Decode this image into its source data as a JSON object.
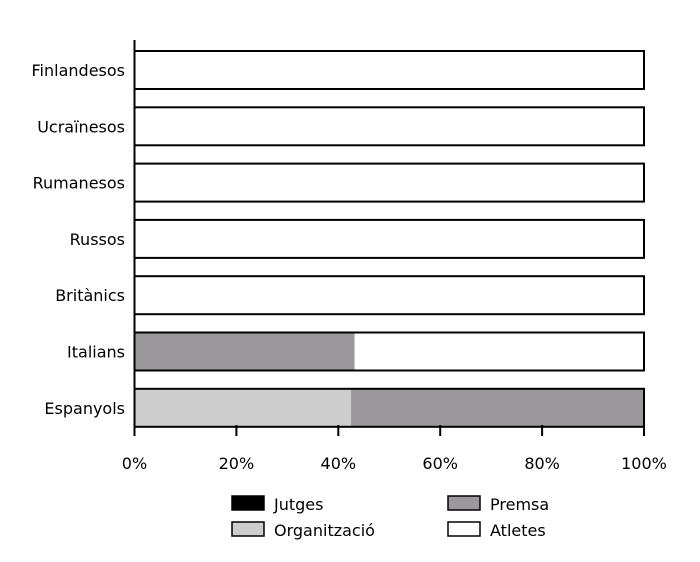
{
  "chart_data": {
    "type": "bar",
    "orientation": "horizontal",
    "stacked": true,
    "title": "",
    "xlabel": "",
    "ylabel": "",
    "xlim": [
      0,
      100
    ],
    "categories": [
      "Finlandesos",
      "Ucraïnesos",
      "Rumanesos",
      "Russos",
      "Britànics",
      "Italians",
      "Espanyols"
    ],
    "x_ticks": [
      "0%",
      "20%",
      "40%",
      "60%",
      "80%",
      "100%"
    ],
    "series": [
      {
        "name": "Jutges",
        "color": "#000000",
        "values": [
          0,
          0,
          0,
          0,
          0,
          0,
          0
        ]
      },
      {
        "name": "Organització",
        "color": "#cdcdcd",
        "values": [
          0,
          0,
          0,
          0,
          0,
          0,
          42.5
        ]
      },
      {
        "name": "Premsa",
        "color": "#9a989a",
        "values": [
          0,
          0,
          0,
          0,
          0,
          43.2,
          57.5
        ]
      },
      {
        "name": "Atletes",
        "color": "#ffffff",
        "values": [
          100,
          100,
          100,
          100,
          100,
          56.8,
          0
        ]
      }
    ],
    "legend_order": [
      "Jutges",
      "Premsa",
      "Organització",
      "Atletes"
    ],
    "legend_placement": "bottom",
    "grid": false
  }
}
